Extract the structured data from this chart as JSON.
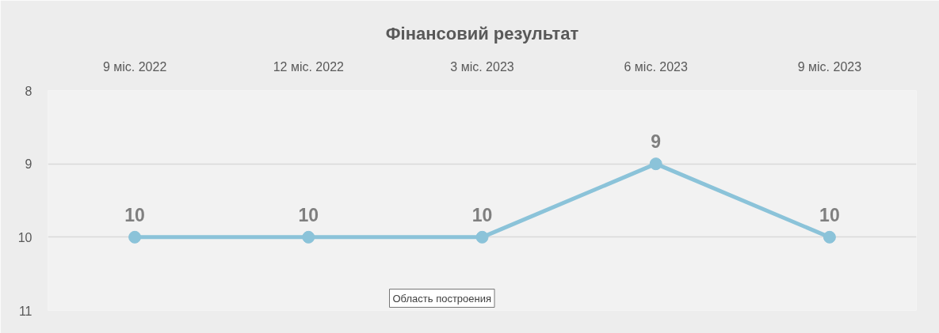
{
  "chart_data": {
    "type": "line",
    "title": "Фінансовий результат",
    "categories": [
      "9 міс. 2022",
      "12 міс. 2022",
      "3 міс. 2023",
      "6 міс. 2023",
      "9 міс. 2023"
    ],
    "values": [
      10,
      10,
      10,
      9,
      10
    ],
    "color": "#8bc3d9",
    "ylim": [
      11,
      8
    ],
    "yticks": [
      8,
      9,
      10,
      11
    ],
    "grid": "y",
    "marker": "circle",
    "line_style": "solid",
    "data_labels": true,
    "annotations": [
      "Область построения"
    ]
  }
}
